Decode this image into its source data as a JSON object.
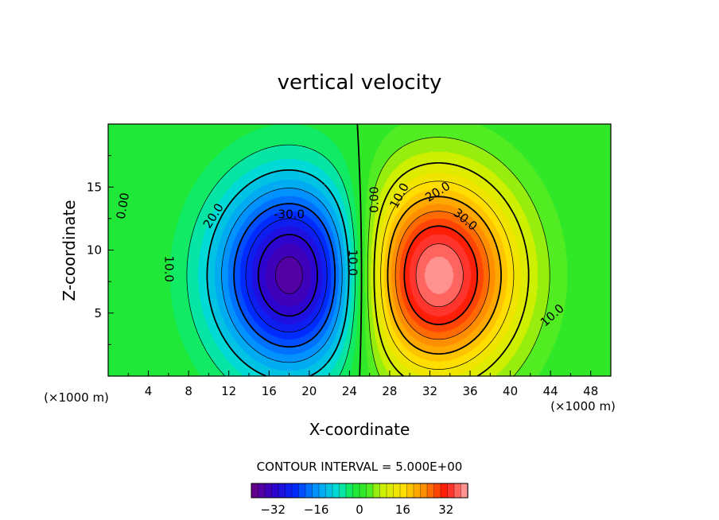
{
  "chart_data": {
    "type": "contour",
    "title": "vertical velocity",
    "xlabel": "X-coordinate",
    "ylabel": "Z-coordinate",
    "x_unit_left": "(×1000 m)",
    "x_unit_right": "(×1000 m)",
    "xlim": [
      0,
      50
    ],
    "ylim": [
      0,
      20
    ],
    "xticks": [
      4,
      8,
      12,
      16,
      20,
      24,
      28,
      32,
      36,
      40,
      44,
      48
    ],
    "yticks": [
      5,
      10,
      15
    ],
    "contour_interval_text": "CONTOUR INTERVAL = 5.000E+00",
    "contour_interval": 5,
    "field": {
      "downdraft": {
        "center_x": 18.5,
        "center_z": 8,
        "min": -38
      },
      "updraft": {
        "center_x": 32.5,
        "center_z": 8,
        "max": 40
      }
    },
    "contour_labels": [
      {
        "text": "0.00",
        "x": 1.5,
        "z": 13.5,
        "rot": -80
      },
      {
        "text": "20.0",
        "x": 10.5,
        "z": 12.7,
        "rot": -58
      },
      {
        "text": "-30.0",
        "x": 18,
        "z": 12.8,
        "rot": 0
      },
      {
        "text": "10.0",
        "x": 6,
        "z": 8.5,
        "rot": 90
      },
      {
        "text": "10.0",
        "x": 24.3,
        "z": 9,
        "rot": 90
      },
      {
        "text": "0.00",
        "x": 26.5,
        "z": 14,
        "rot": -90
      },
      {
        "text": "10.0",
        "x": 29,
        "z": 14.3,
        "rot": -62
      },
      {
        "text": "20.0",
        "x": 32.8,
        "z": 14.6,
        "rot": -32
      },
      {
        "text": "30.0",
        "x": 35.5,
        "z": 12.4,
        "rot": 40
      },
      {
        "text": "10.0",
        "x": 44.2,
        "z": 4.8,
        "rot": -42
      }
    ],
    "colorbar": {
      "min": -40,
      "max": 40,
      "tick_values": [
        -32,
        -16,
        0,
        16,
        32
      ],
      "tick_labels": [
        "−32",
        "−16",
        "0",
        "16",
        "32"
      ]
    }
  }
}
